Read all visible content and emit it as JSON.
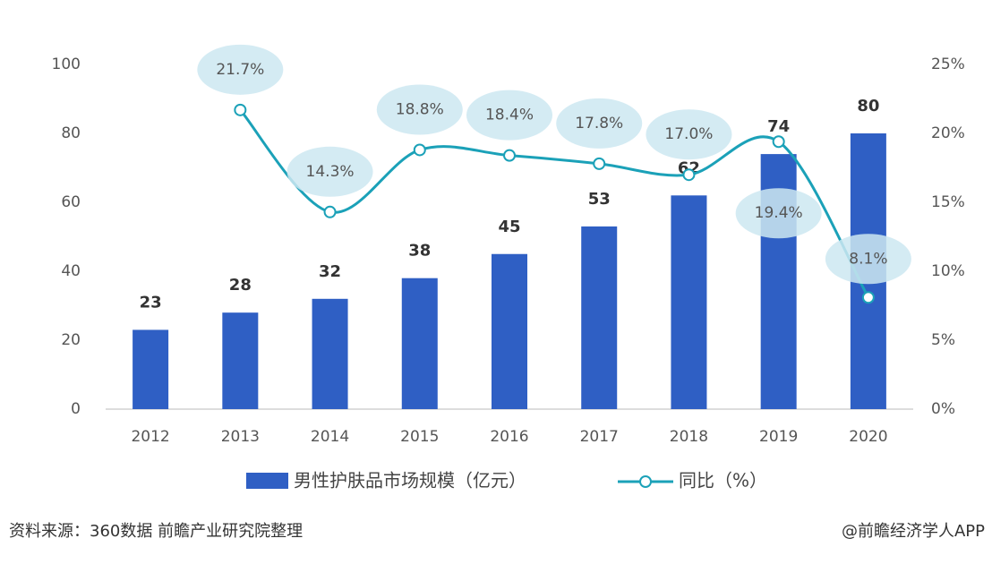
{
  "chart_data": {
    "type": "bar",
    "categories": [
      "2012",
      "2013",
      "2014",
      "2015",
      "2016",
      "2017",
      "2018",
      "2019",
      "2020"
    ],
    "series": [
      {
        "name": "男性护肤品市场规模（亿元）",
        "type": "bar",
        "color": "#2f5fc4",
        "values": [
          23,
          28,
          32,
          38,
          45,
          53,
          62,
          74,
          80
        ]
      },
      {
        "name": "同比（%）",
        "type": "line",
        "axis": "y2",
        "color": "#1ba1b8",
        "values": [
          null,
          21.7,
          14.3,
          18.8,
          18.4,
          17.8,
          17.0,
          19.4,
          8.1
        ],
        "value_labels": [
          null,
          "21.7%",
          "14.3%",
          "18.8%",
          "18.4%",
          "17.8%",
          "17.0%",
          "19.4%",
          "8.1%"
        ]
      }
    ],
    "ylim": [
      0,
      100
    ],
    "yticks": [
      0,
      20,
      40,
      60,
      80,
      100
    ],
    "y2lim": [
      0,
      25
    ],
    "y2ticks": [
      {
        "value": 0,
        "label": "0%"
      },
      {
        "value": 5,
        "label": "5%"
      },
      {
        "value": 10,
        "label": "10%"
      },
      {
        "value": 15,
        "label": "15%"
      },
      {
        "value": 20,
        "label": "20%"
      },
      {
        "value": 25,
        "label": "25%"
      }
    ],
    "grid": false,
    "source": "资料来源：360数据 前瞻产业研究院整理",
    "credit": "@前瞻经济学人APP"
  }
}
